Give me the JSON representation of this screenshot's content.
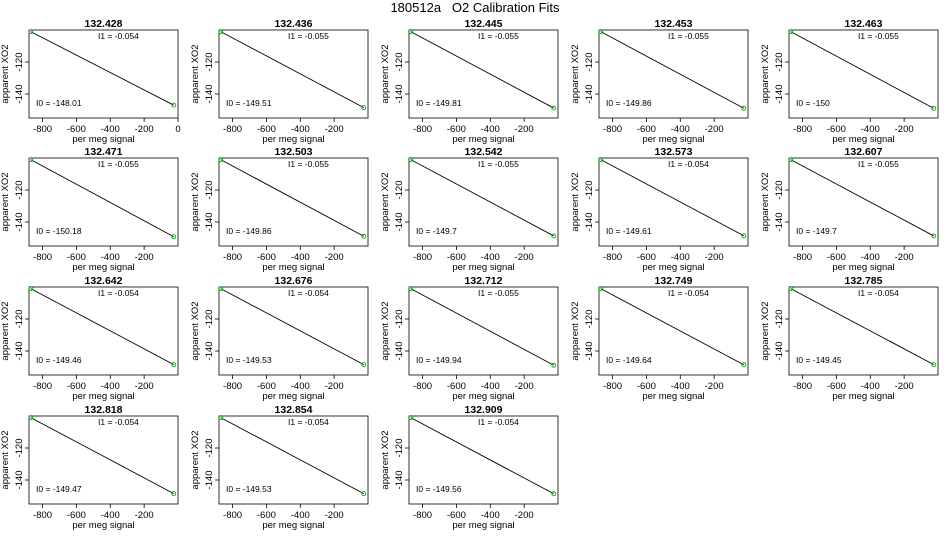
{
  "title": "180512a   O2 Calibration Fits",
  "axis": {
    "xlabel": "per meg signal",
    "ylabel": "apparent XO2"
  },
  "colors": {
    "line": "#000000",
    "marker": "#00b000",
    "frame": "#000000"
  },
  "chart_data": [
    {
      "type": "scatter",
      "title": "132.428",
      "I1_label": "I1 =  -0.054",
      "I0_label": "I0 =  -148.01",
      "xticks": [
        "-800",
        "-600",
        "-400",
        "-200",
        "0"
      ],
      "yticks": [
        "-120",
        "-140"
      ],
      "xlim": [
        -880,
        0
      ],
      "ylim": [
        -155,
        -100
      ],
      "points": [
        [
          -870,
          -101.0
        ],
        [
          -25,
          -147.0
        ]
      ],
      "fit": {
        "slope": -0.054,
        "intercept": -148.01
      }
    },
    {
      "type": "scatter",
      "title": "132.436",
      "I1_label": "I1 =  -0.055",
      "I0_label": "I0 =  -149.51",
      "xticks": [
        "-800",
        "-600",
        "-400",
        "-200"
      ],
      "yticks": [
        "-120",
        "-140"
      ],
      "xlim": [
        -880,
        0
      ],
      "ylim": [
        -155,
        -100
      ],
      "points": [
        [
          -870,
          -101.0
        ],
        [
          -25,
          -148.5
        ]
      ],
      "fit": {
        "slope": -0.055,
        "intercept": -149.51
      }
    },
    {
      "type": "scatter",
      "title": "132.445",
      "I1_label": "I1 =  -0.055",
      "I0_label": "I0 =  -149.81",
      "xticks": [
        "-800",
        "-600",
        "-400",
        "-200"
      ],
      "yticks": [
        "-120",
        "-140"
      ],
      "xlim": [
        -880,
        0
      ],
      "ylim": [
        -155,
        -100
      ],
      "points": [
        [
          -870,
          -101.0
        ],
        [
          -25,
          -148.8
        ]
      ],
      "fit": {
        "slope": -0.055,
        "intercept": -149.81
      }
    },
    {
      "type": "scatter",
      "title": "132.453",
      "I1_label": "I1 =  -0.055",
      "I0_label": "I0 =  -149.86",
      "xticks": [
        "-800",
        "-600",
        "-400",
        "-200"
      ],
      "yticks": [
        "-120",
        "-140"
      ],
      "xlim": [
        -880,
        0
      ],
      "ylim": [
        -155,
        -100
      ],
      "points": [
        [
          -870,
          -101.0
        ],
        [
          -25,
          -148.9
        ]
      ],
      "fit": {
        "slope": -0.055,
        "intercept": -149.86
      }
    },
    {
      "type": "scatter",
      "title": "132.463",
      "I1_label": "I1 =  -0.055",
      "I0_label": "I0 =  -150",
      "xticks": [
        "-800",
        "-600",
        "-400",
        "-200"
      ],
      "yticks": [
        "-120",
        "-140"
      ],
      "xlim": [
        -880,
        0
      ],
      "ylim": [
        -155,
        -100
      ],
      "points": [
        [
          -870,
          -101.0
        ],
        [
          -25,
          -149.0
        ]
      ],
      "fit": {
        "slope": -0.055,
        "intercept": -150.0
      }
    },
    {
      "type": "scatter",
      "title": "132.471",
      "I1_label": "I1 =  -0.055",
      "I0_label": "I0 =  -150.18",
      "xticks": [
        "-800",
        "-600",
        "-400",
        "-200"
      ],
      "yticks": [
        "-120",
        "-140"
      ],
      "xlim": [
        -880,
        0
      ],
      "ylim": [
        -155,
        -100
      ],
      "points": [
        [
          -870,
          -101.0
        ],
        [
          -25,
          -149.2
        ]
      ],
      "fit": {
        "slope": -0.055,
        "intercept": -150.18
      }
    },
    {
      "type": "scatter",
      "title": "132.503",
      "I1_label": "I1 =  -0.055",
      "I0_label": "I0 =  -149.86",
      "xticks": [
        "-800",
        "-600",
        "-400",
        "-200"
      ],
      "yticks": [
        "-120",
        "-140"
      ],
      "xlim": [
        -880,
        0
      ],
      "ylim": [
        -155,
        -100
      ],
      "points": [
        [
          -870,
          -101.0
        ],
        [
          -25,
          -148.9
        ]
      ],
      "fit": {
        "slope": -0.055,
        "intercept": -149.86
      }
    },
    {
      "type": "scatter",
      "title": "132.542",
      "I1_label": "I1 =  -0.055",
      "I0_label": "I0 =  -149.7",
      "xticks": [
        "-800",
        "-600",
        "-400",
        "-200"
      ],
      "yticks": [
        "-120",
        "-140"
      ],
      "xlim": [
        -880,
        0
      ],
      "ylim": [
        -155,
        -100
      ],
      "points": [
        [
          -870,
          -101.0
        ],
        [
          -25,
          -148.7
        ]
      ],
      "fit": {
        "slope": -0.055,
        "intercept": -149.7
      }
    },
    {
      "type": "scatter",
      "title": "132.573",
      "I1_label": "I1 =  -0.054",
      "I0_label": "I0 =  -149.61",
      "xticks": [
        "-800",
        "-600",
        "-400",
        "-200"
      ],
      "yticks": [
        "-120",
        "-140"
      ],
      "xlim": [
        -880,
        0
      ],
      "ylim": [
        -155,
        -100
      ],
      "points": [
        [
          -870,
          -101.0
        ],
        [
          -25,
          -148.6
        ]
      ],
      "fit": {
        "slope": -0.054,
        "intercept": -149.61
      }
    },
    {
      "type": "scatter",
      "title": "132.607",
      "I1_label": "I1 =  -0.055",
      "I0_label": "I0 =  -149.7",
      "xticks": [
        "-800",
        "-600",
        "-400",
        "-200"
      ],
      "yticks": [
        "-120",
        "-140"
      ],
      "xlim": [
        -880,
        0
      ],
      "ylim": [
        -155,
        -100
      ],
      "points": [
        [
          -870,
          -101.0
        ],
        [
          -25,
          -148.7
        ]
      ],
      "fit": {
        "slope": -0.055,
        "intercept": -149.7
      }
    },
    {
      "type": "scatter",
      "title": "132.642",
      "I1_label": "I1 =  -0.054",
      "I0_label": "I0 =  -149.46",
      "xticks": [
        "-800",
        "-600",
        "-400",
        "-200"
      ],
      "yticks": [
        "-120",
        "-140"
      ],
      "xlim": [
        -880,
        0
      ],
      "ylim": [
        -155,
        -100
      ],
      "points": [
        [
          -870,
          -101.0
        ],
        [
          -25,
          -148.5
        ]
      ],
      "fit": {
        "slope": -0.054,
        "intercept": -149.46
      }
    },
    {
      "type": "scatter",
      "title": "132.676",
      "I1_label": "I1 =  -0.054",
      "I0_label": "I0 =  -149.53",
      "xticks": [
        "-800",
        "-600",
        "-400",
        "-200"
      ],
      "yticks": [
        "-120",
        "-140"
      ],
      "xlim": [
        -880,
        0
      ],
      "ylim": [
        -155,
        -100
      ],
      "points": [
        [
          -870,
          -101.0
        ],
        [
          -25,
          -148.5
        ]
      ],
      "fit": {
        "slope": -0.054,
        "intercept": -149.53
      }
    },
    {
      "type": "scatter",
      "title": "132.712",
      "I1_label": "I1 =  -0.055",
      "I0_label": "I0 =  -149.94",
      "xticks": [
        "-800",
        "-600",
        "-400",
        "-200"
      ],
      "yticks": [
        "-120",
        "-140"
      ],
      "xlim": [
        -880,
        0
      ],
      "ylim": [
        -155,
        -100
      ],
      "points": [
        [
          -870,
          -101.0
        ],
        [
          -25,
          -148.9
        ]
      ],
      "fit": {
        "slope": -0.055,
        "intercept": -149.94
      }
    },
    {
      "type": "scatter",
      "title": "132.749",
      "I1_label": "I1 =  -0.054",
      "I0_label": "I0 =  -149.64",
      "xticks": [
        "-800",
        "-600",
        "-400",
        "-200"
      ],
      "yticks": [
        "-120",
        "-140"
      ],
      "xlim": [
        -880,
        0
      ],
      "ylim": [
        -155,
        -100
      ],
      "points": [
        [
          -870,
          -101.0
        ],
        [
          -25,
          -148.6
        ]
      ],
      "fit": {
        "slope": -0.054,
        "intercept": -149.64
      }
    },
    {
      "type": "scatter",
      "title": "132.785",
      "I1_label": "I1 =  -0.054",
      "I0_label": "I0 =  -149.45",
      "xticks": [
        "-800",
        "-600",
        "-400",
        "-200"
      ],
      "yticks": [
        "-120",
        "-140"
      ],
      "xlim": [
        -880,
        0
      ],
      "ylim": [
        -155,
        -100
      ],
      "points": [
        [
          -870,
          -101.0
        ],
        [
          -25,
          -148.5
        ]
      ],
      "fit": {
        "slope": -0.054,
        "intercept": -149.45
      }
    },
    {
      "type": "scatter",
      "title": "132.818",
      "I1_label": "I1 =  -0.054",
      "I0_label": "I0 =  -149.47",
      "xticks": [
        "-800",
        "-600",
        "-400",
        "-200"
      ],
      "yticks": [
        "-120",
        "-140"
      ],
      "xlim": [
        -880,
        0
      ],
      "ylim": [
        -155,
        -100
      ],
      "points": [
        [
          -870,
          -101.0
        ],
        [
          -25,
          -148.5
        ]
      ],
      "fit": {
        "slope": -0.054,
        "intercept": -149.47
      }
    },
    {
      "type": "scatter",
      "title": "132.854",
      "I1_label": "I1 =  -0.054",
      "I0_label": "I0 =  -149.53",
      "xticks": [
        "-800",
        "-600",
        "-400",
        "-200"
      ],
      "yticks": [
        "-120",
        "-140"
      ],
      "xlim": [
        -880,
        0
      ],
      "ylim": [
        -155,
        -100
      ],
      "points": [
        [
          -870,
          -101.0
        ],
        [
          -25,
          -148.5
        ]
      ],
      "fit": {
        "slope": -0.054,
        "intercept": -149.53
      }
    },
    {
      "type": "scatter",
      "title": "132.909",
      "I1_label": "I1 =  -0.054",
      "I0_label": "I0 =  -149.56",
      "xticks": [
        "-800",
        "-600",
        "-400",
        "-200"
      ],
      "yticks": [
        "-120",
        "-140"
      ],
      "xlim": [
        -880,
        0
      ],
      "ylim": [
        -155,
        -100
      ],
      "points": [
        [
          -870,
          -101.0
        ],
        [
          -25,
          -148.6
        ]
      ],
      "fit": {
        "slope": -0.054,
        "intercept": -149.56
      }
    }
  ]
}
